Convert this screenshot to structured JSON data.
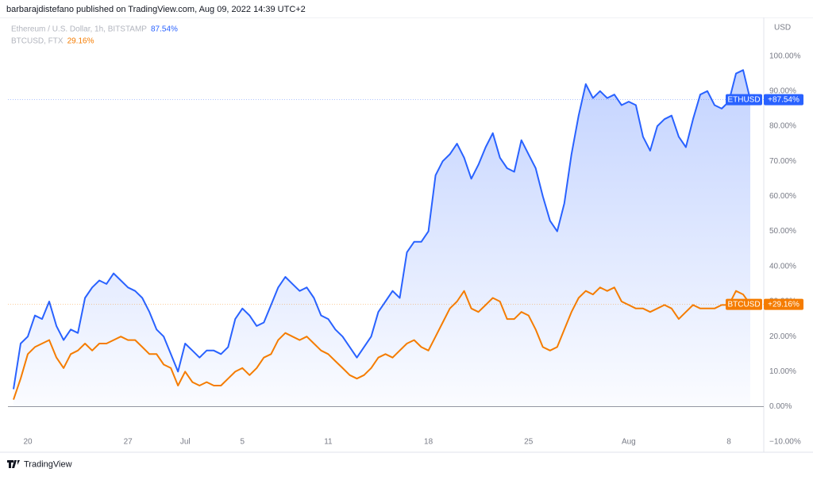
{
  "header": "barbarajdistefano published on TradingView.com, Aug 09, 2022 14:39 UTC+2",
  "footer": "TradingView",
  "chart_data": {
    "type": "line",
    "y_axis_title": "USD",
    "categories": [
      null,
      null,
      "20",
      null,
      null,
      null,
      null,
      null,
      null,
      null,
      null,
      null,
      null,
      null,
      null,
      null,
      "27",
      null,
      null,
      null,
      null,
      null,
      null,
      null,
      "Jul",
      null,
      null,
      null,
      null,
      null,
      null,
      null,
      "5",
      null,
      null,
      null,
      null,
      null,
      null,
      null,
      null,
      null,
      null,
      null,
      "11",
      null,
      null,
      null,
      null,
      null,
      null,
      null,
      null,
      null,
      null,
      null,
      null,
      null,
      "18",
      null,
      null,
      null,
      null,
      null,
      null,
      null,
      null,
      null,
      null,
      null,
      null,
      null,
      "25",
      null,
      null,
      null,
      null,
      null,
      null,
      null,
      null,
      null,
      null,
      null,
      null,
      null,
      "Aug",
      null,
      null,
      null,
      null,
      null,
      null,
      null,
      null,
      null,
      null,
      null,
      null,
      null,
      "8",
      null,
      null,
      null
    ],
    "series": [
      {
        "name": "Ethereum / U.S. Dollar, 1h, BITSTAMP",
        "legend_value": "87.54%",
        "tag": "ETHUSD",
        "price_label": "+87.54%",
        "color": "#2962ff",
        "values": [
          5,
          18,
          20,
          26,
          25,
          30,
          23,
          19,
          22,
          21,
          31,
          34,
          36,
          35,
          38,
          36,
          34,
          33,
          31,
          27,
          22,
          20,
          15,
          10,
          18,
          16,
          14,
          16,
          16,
          15,
          17,
          25,
          28,
          26,
          23,
          24,
          29,
          34,
          37,
          35,
          33,
          34,
          31,
          26,
          25,
          22,
          20,
          17,
          14,
          17,
          20,
          27,
          30,
          33,
          31,
          44,
          47,
          47,
          50,
          66,
          70,
          72,
          75,
          71,
          65,
          69,
          74,
          78,
          71,
          68,
          67,
          76,
          72,
          68,
          60,
          53,
          50,
          58,
          72,
          83,
          92,
          88,
          90,
          88,
          89,
          86,
          87,
          86,
          77,
          73,
          80,
          82,
          83,
          77,
          74,
          82,
          89,
          90,
          86,
          85,
          87,
          95,
          96,
          87.54
        ]
      },
      {
        "name": "BTCUSD, FTX",
        "legend_value": "29.16%",
        "tag": "BTCUSD",
        "price_label": "+29.16%",
        "color": "#f57c00",
        "values": [
          2,
          8,
          15,
          17,
          18,
          19,
          14,
          11,
          15,
          16,
          18,
          16,
          18,
          18,
          19,
          20,
          19,
          19,
          17,
          15,
          15,
          12,
          11,
          6,
          10,
          7,
          6,
          7,
          6,
          6,
          8,
          10,
          11,
          9,
          11,
          14,
          15,
          19,
          21,
          20,
          19,
          20,
          18,
          16,
          15,
          13,
          11,
          9,
          8,
          9,
          11,
          14,
          15,
          14,
          16,
          18,
          19,
          17,
          16,
          20,
          24,
          28,
          30,
          33,
          28,
          27,
          29,
          31,
          30,
          25,
          25,
          27,
          26,
          22,
          17,
          16,
          17,
          22,
          27,
          31,
          33,
          32,
          34,
          33,
          34,
          30,
          29,
          28,
          28,
          27,
          28,
          29,
          28,
          25,
          27,
          29,
          28,
          28,
          28,
          29,
          29,
          33,
          32,
          29.16
        ]
      }
    ],
    "ylim": [
      -13,
      111
    ],
    "yticks": [
      {
        "value": -10,
        "label": "−10.00%"
      },
      {
        "value": 0,
        "label": "0.00%"
      },
      {
        "value": 10,
        "label": "10.00%"
      },
      {
        "value": 20,
        "label": "20.00%"
      },
      {
        "value": 30,
        "label": "30.00%"
      },
      {
        "value": 40,
        "label": "40.00%"
      },
      {
        "value": 50,
        "label": "50.00%"
      },
      {
        "value": 60,
        "label": "60.00%"
      },
      {
        "value": 70,
        "label": "70.00%"
      },
      {
        "value": 80,
        "label": "80.00%"
      },
      {
        "value": 90,
        "label": "90.00%"
      },
      {
        "value": 100,
        "label": "100.00%"
      }
    ]
  }
}
